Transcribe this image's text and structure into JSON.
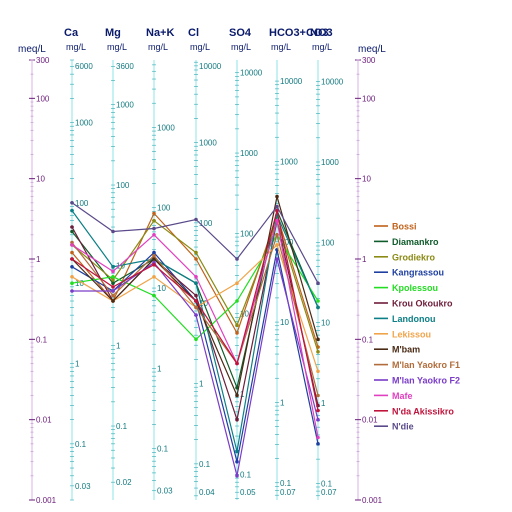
{
  "chart_data": {
    "type": "line",
    "chart_kind": "Schoeller diagram",
    "scale": "log",
    "ylim_meq": [
      0.001,
      300
    ],
    "grid": false,
    "legend_position": "right",
    "side_axis": {
      "unit": "meq/L",
      "ticks": [
        {
          "v": 300,
          "label": "300"
        },
        {
          "v": 100,
          "label": "100"
        },
        {
          "v": 10,
          "label": "10"
        },
        {
          "v": 1,
          "label": "1"
        },
        {
          "v": 0.1,
          "label": "0.1"
        },
        {
          "v": 0.01,
          "label": "0.01"
        },
        {
          "v": 0.001,
          "label": "0.001"
        }
      ]
    },
    "columns": [
      {
        "name": "Ca",
        "unit": "mg/L",
        "ticks": [
          {
            "v": 6000,
            "label": "6000"
          },
          {
            "v": 1000,
            "label": "1000"
          },
          {
            "v": 100,
            "label": "100"
          },
          {
            "v": 10,
            "label": "10"
          },
          {
            "v": 1,
            "label": "1"
          },
          {
            "v": 0.1,
            "label": "0.1"
          },
          {
            "v": 0.03,
            "label": "0.03"
          }
        ]
      },
      {
        "name": "Mg",
        "unit": "mg/L",
        "ticks": [
          {
            "v": 3600,
            "label": "3600"
          },
          {
            "v": 1000,
            "label": "1000"
          },
          {
            "v": 100,
            "label": "100"
          },
          {
            "v": 10,
            "label": "10"
          },
          {
            "v": 1,
            "label": "1"
          },
          {
            "v": 0.1,
            "label": "0.1"
          },
          {
            "v": 0.02,
            "label": "0.02"
          }
        ]
      },
      {
        "name": "Na+K",
        "unit": "mg/L",
        "ticks": [
          {
            "v": 1000,
            "label": "1000"
          },
          {
            "v": 100,
            "label": "100"
          },
          {
            "v": 10,
            "label": "10"
          },
          {
            "v": 1,
            "label": "1"
          },
          {
            "v": 0.1,
            "label": "0.1"
          },
          {
            "v": 0.03,
            "label": "0.03"
          }
        ]
      },
      {
        "name": "Cl",
        "unit": "mg/L",
        "ticks": [
          {
            "v": 10000,
            "label": "10000"
          },
          {
            "v": 1000,
            "label": "1000"
          },
          {
            "v": 100,
            "label": "100"
          },
          {
            "v": 10,
            "label": "10"
          },
          {
            "v": 1,
            "label": "1"
          },
          {
            "v": 0.1,
            "label": "0.1"
          },
          {
            "v": 0.04,
            "label": "0.04"
          }
        ]
      },
      {
        "name": "SO4",
        "unit": "mg/L",
        "ticks": [
          {
            "v": 10000,
            "label": "10000"
          },
          {
            "v": 1000,
            "label": "1000"
          },
          {
            "v": 100,
            "label": "100"
          },
          {
            "v": 10,
            "label": "10"
          },
          {
            "v": 1,
            "label": "1"
          },
          {
            "v": 0.1,
            "label": "0.1"
          },
          {
            "v": 0.05,
            "label": "0.05"
          }
        ]
      },
      {
        "name": "HCO3+CO3",
        "unit": "mg/L",
        "ticks": [
          {
            "v": 10000,
            "label": "10000"
          },
          {
            "v": 1000,
            "label": "1000"
          },
          {
            "v": 100,
            "label": "100"
          },
          {
            "v": 10,
            "label": "10"
          },
          {
            "v": 1,
            "label": "1"
          },
          {
            "v": 0.1,
            "label": "0.1"
          },
          {
            "v": 0.07,
            "label": "0.07"
          }
        ]
      },
      {
        "name": "NO3",
        "unit": "mg/L",
        "ticks": [
          {
            "v": 10000,
            "label": "10000"
          },
          {
            "v": 1000,
            "label": "1000"
          },
          {
            "v": 100,
            "label": "100"
          },
          {
            "v": 10,
            "label": "10"
          },
          {
            "v": 1,
            "label": "1"
          },
          {
            "v": 0.1,
            "label": "0.1"
          },
          {
            "v": 0.07,
            "label": "0.07"
          }
        ]
      }
    ],
    "categories": [
      "Ca",
      "Mg",
      "Na+K",
      "Cl",
      "SO4",
      "HCO3+CO3",
      "NO3"
    ],
    "series": [
      {
        "name": "Bossi",
        "color": "#c0621a",
        "values": [
          1.2,
          0.3,
          3.7,
          1.0,
          0.12,
          3.5,
          0.08
        ]
      },
      {
        "name": "Diamankro",
        "color": "#0f5b2a",
        "values": [
          2.2,
          0.5,
          1.0,
          0.5,
          0.025,
          4.0,
          0.25
        ]
      },
      {
        "name": "Grodiekro",
        "color": "#8a8a14",
        "values": [
          1.5,
          0.55,
          3.0,
          1.2,
          0.15,
          3.0,
          0.07
        ]
      },
      {
        "name": "Kangrassou",
        "color": "#1e3fa0",
        "values": [
          0.8,
          0.4,
          1.2,
          0.3,
          0.003,
          1.3,
          0.005
        ]
      },
      {
        "name": "Kpolessou",
        "color": "#22dd22",
        "values": [
          0.5,
          0.6,
          0.35,
          0.1,
          0.3,
          2.0,
          0.3
        ]
      },
      {
        "name": "Krou Okoukro",
        "color": "#6e1d3a",
        "values": [
          2.5,
          0.3,
          1.0,
          0.35,
          0.01,
          3.0,
          0.015
        ]
      },
      {
        "name": "Landonou",
        "color": "#0c7f86",
        "values": [
          4.0,
          0.8,
          1.0,
          0.5,
          0.004,
          3.5,
          0.25
        ]
      },
      {
        "name": "Lekissou",
        "color": "#f0a44a",
        "values": [
          0.6,
          0.3,
          0.6,
          0.25,
          0.5,
          1.5,
          0.04
        ]
      },
      {
        "name": "M'bam",
        "color": "#4a2a14",
        "values": [
          1.0,
          0.3,
          1.0,
          0.3,
          0.02,
          6.0,
          0.1
        ]
      },
      {
        "name": "M'lan Yaokro F1",
        "color": "#b06c3a",
        "values": [
          1.6,
          0.35,
          1.1,
          0.25,
          0.05,
          2.0,
          0.02
        ]
      },
      {
        "name": "M'lan Yaokro F2",
        "color": "#7a3cc8",
        "values": [
          0.4,
          0.4,
          0.9,
          0.2,
          0.002,
          1.0,
          0.01
        ]
      },
      {
        "name": "Mafe",
        "color": "#e040c0",
        "values": [
          1.5,
          0.7,
          2.0,
          0.6,
          0.05,
          3.0,
          0.006
        ]
      },
      {
        "name": "N'da Akissikro",
        "color": "#c0143c",
        "values": [
          1.0,
          0.45,
          0.85,
          0.3,
          0.05,
          4.0,
          0.013
        ]
      },
      {
        "name": "N'die",
        "color": "#5a4a8a",
        "values": [
          5.0,
          2.2,
          2.4,
          3.1,
          1.0,
          4.5,
          0.5
        ]
      }
    ]
  }
}
